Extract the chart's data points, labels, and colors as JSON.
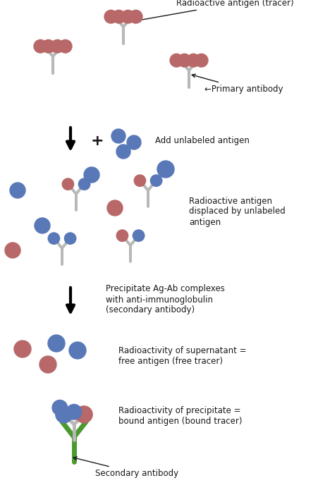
{
  "bg_color": "#ffffff",
  "text_color": "#1a1a1a",
  "antibody_color": "#b8b8b8",
  "radioactive_ag_color": "#b86868",
  "unlabeled_ag_color": "#5878b8",
  "secondary_ab_color": "#4a9a30",
  "arrow_color": "#111111",
  "labels": {
    "radioactive_antigen": "Radioactive antigen (tracer)",
    "primary_antibody": "←Primary antibody",
    "add_unlabeled": "Add unlabeled antigen",
    "displaced": "Radioactive antigen\ndisplaced by unlabeled\nantigen",
    "precipitate": "Precipitate Ag-Ab complexes\nwith anti-immunoglobulin\n(secondary antibody)",
    "supernatant": "Radioactivity of supernatant =\nfree antigen (free tracer)",
    "precipitate_label": "Radioactivity of precipitate =\nbound antigen (bound tracer)",
    "secondary_antibody": "Secondary antibody"
  },
  "font_size": 8.5
}
